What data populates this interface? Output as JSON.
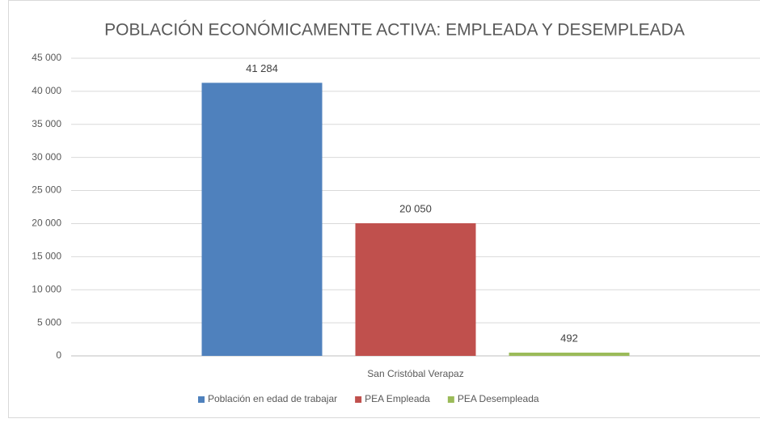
{
  "chart_data": {
    "type": "bar",
    "title": "POBLACIÓN ECONÓMICAMENTE ACTIVA: EMPLEADA Y DESEMPLEADA",
    "categories": [
      "San Cristóbal Verapaz"
    ],
    "series": [
      {
        "name": "Población en edad de trabajar",
        "color": "#4f81bd",
        "values": [
          41284
        ],
        "value_labels": [
          "41 284"
        ]
      },
      {
        "name": "PEA Empleada",
        "color": "#c0504d",
        "values": [
          20050
        ],
        "value_labels": [
          "20 050"
        ]
      },
      {
        "name": "PEA Desempleada",
        "color": "#9bbb59",
        "values": [
          492
        ],
        "value_labels": [
          "492"
        ]
      }
    ],
    "ylim": [
      0,
      45000
    ],
    "yticks": [
      0,
      {
        "value": 5000,
        "label": "5 000"
      },
      {
        "value": 10000,
        "label": "10 000"
      },
      {
        "value": 15000,
        "label": "15 000"
      },
      {
        "value": 20000,
        "label": "20 000"
      },
      {
        "value": 25000,
        "label": "25 000"
      },
      {
        "value": 30000,
        "label": "30 000"
      },
      {
        "value": 35000,
        "label": "35 000"
      },
      {
        "value": 40000,
        "label": "40 000"
      },
      {
        "value": 45000,
        "label": "45 000"
      }
    ],
    "grid": true,
    "legend": "bottom"
  }
}
